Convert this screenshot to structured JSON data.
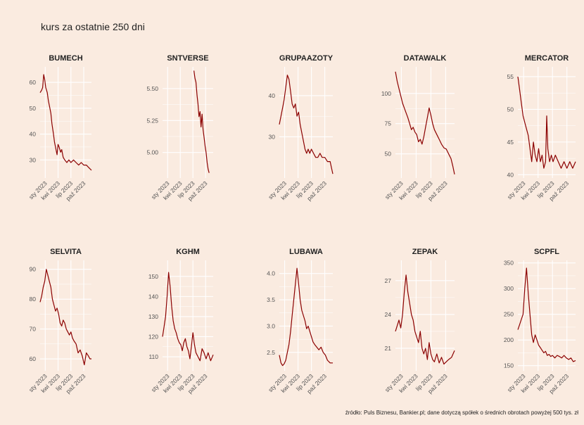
{
  "title": "kurs za ostatnie 250 dni",
  "source": "źródło: Puls Biznesu, Bankier.pl; dane dotyczą spółek o średnich obrotach powyżej 500 tys. zł",
  "colors": {
    "background": "#faebe0",
    "line": "#8b0000",
    "grid": "#ffffff",
    "text": "#222222",
    "tick_text": "#555555"
  },
  "chart_data": [
    {
      "type": "line",
      "title": "BUMECH",
      "xticks": [
        "sty 2023",
        "kwi 2023",
        "lip 2023",
        "paź 2023"
      ],
      "yticks": [
        "30",
        "40",
        "50",
        "60"
      ],
      "ylim": [
        23,
        66
      ],
      "points": [
        [
          0.0,
          56
        ],
        [
          0.03,
          57
        ],
        [
          0.05,
          58
        ],
        [
          0.07,
          63
        ],
        [
          0.09,
          61
        ],
        [
          0.11,
          58
        ],
        [
          0.14,
          56
        ],
        [
          0.16,
          53
        ],
        [
          0.19,
          50
        ],
        [
          0.21,
          48
        ],
        [
          0.23,
          44
        ],
        [
          0.26,
          40
        ],
        [
          0.28,
          37
        ],
        [
          0.31,
          34
        ],
        [
          0.33,
          32
        ],
        [
          0.35,
          36
        ],
        [
          0.37,
          35
        ],
        [
          0.4,
          33
        ],
        [
          0.42,
          34
        ],
        [
          0.45,
          31
        ],
        [
          0.48,
          30
        ],
        [
          0.52,
          29
        ],
        [
          0.56,
          30
        ],
        [
          0.6,
          29
        ],
        [
          0.65,
          30
        ],
        [
          0.7,
          29
        ],
        [
          0.75,
          28
        ],
        [
          0.8,
          29
        ],
        [
          0.85,
          28
        ],
        [
          0.9,
          28
        ],
        [
          0.95,
          27
        ],
        [
          1.0,
          26
        ]
      ]
    },
    {
      "type": "line",
      "title": "SNTVERSE",
      "xticks": [
        "sty 2023",
        "kwi 2023",
        "lip 2023",
        "paź 2023"
      ],
      "yticks": [
        "5.00",
        "5.25",
        "5.50"
      ],
      "ylim": [
        4.8,
        5.67
      ],
      "points": [
        [
          0.62,
          5.64
        ],
        [
          0.64,
          5.58
        ],
        [
          0.66,
          5.55
        ],
        [
          0.68,
          5.45
        ],
        [
          0.7,
          5.38
        ],
        [
          0.72,
          5.28
        ],
        [
          0.74,
          5.32
        ],
        [
          0.76,
          5.2
        ],
        [
          0.78,
          5.3
        ],
        [
          0.8,
          5.18
        ],
        [
          0.82,
          5.12
        ],
        [
          0.84,
          5.05
        ],
        [
          0.86,
          5.0
        ],
        [
          0.88,
          4.92
        ],
        [
          0.9,
          4.87
        ],
        [
          0.92,
          4.84
        ]
      ]
    },
    {
      "type": "line",
      "title": "GRUPAAZOTY",
      "xticks": [
        "sty 2023",
        "kwi 2023",
        "lip 2023",
        "paź 2023"
      ],
      "yticks": [
        "30",
        "40"
      ],
      "ylim": [
        20,
        47
      ],
      "points": [
        [
          0.0,
          33
        ],
        [
          0.03,
          35
        ],
        [
          0.06,
          37
        ],
        [
          0.09,
          39
        ],
        [
          0.12,
          42
        ],
        [
          0.15,
          45
        ],
        [
          0.18,
          44
        ],
        [
          0.21,
          41
        ],
        [
          0.24,
          38
        ],
        [
          0.27,
          37
        ],
        [
          0.3,
          38
        ],
        [
          0.33,
          35
        ],
        [
          0.36,
          36
        ],
        [
          0.39,
          33
        ],
        [
          0.42,
          31
        ],
        [
          0.45,
          29
        ],
        [
          0.48,
          27
        ],
        [
          0.51,
          26
        ],
        [
          0.54,
          27
        ],
        [
          0.57,
          26
        ],
        [
          0.6,
          27
        ],
        [
          0.64,
          26
        ],
        [
          0.68,
          25
        ],
        [
          0.72,
          25
        ],
        [
          0.76,
          26
        ],
        [
          0.8,
          25
        ],
        [
          0.85,
          25
        ],
        [
          0.9,
          24
        ],
        [
          0.95,
          24
        ],
        [
          1.0,
          21
        ]
      ]
    },
    {
      "type": "line",
      "title": "DATAWALK",
      "xticks": [
        "sty 2023",
        "kwi 2023",
        "lip 2023",
        "paź 2023"
      ],
      "yticks": [
        "50",
        "75",
        "100"
      ],
      "ylim": [
        30,
        122
      ],
      "points": [
        [
          0.0,
          118
        ],
        [
          0.03,
          110
        ],
        [
          0.06,
          104
        ],
        [
          0.09,
          98
        ],
        [
          0.12,
          92
        ],
        [
          0.15,
          88
        ],
        [
          0.18,
          84
        ],
        [
          0.21,
          80
        ],
        [
          0.24,
          75
        ],
        [
          0.27,
          70
        ],
        [
          0.3,
          72
        ],
        [
          0.33,
          68
        ],
        [
          0.36,
          66
        ],
        [
          0.39,
          60
        ],
        [
          0.42,
          62
        ],
        [
          0.45,
          58
        ],
        [
          0.48,
          64
        ],
        [
          0.51,
          72
        ],
        [
          0.54,
          80
        ],
        [
          0.57,
          88
        ],
        [
          0.6,
          82
        ],
        [
          0.63,
          75
        ],
        [
          0.66,
          70
        ],
        [
          0.7,
          66
        ],
        [
          0.74,
          62
        ],
        [
          0.78,
          58
        ],
        [
          0.82,
          55
        ],
        [
          0.86,
          54
        ],
        [
          0.9,
          50
        ],
        [
          0.94,
          46
        ],
        [
          0.97,
          40
        ],
        [
          1.0,
          33
        ]
      ]
    },
    {
      "type": "line",
      "title": "MERCATOR",
      "xticks": [
        "sty 2023",
        "kwi 2023",
        "lip 2023",
        "paź 2023"
      ],
      "yticks": [
        "40",
        "45",
        "50",
        "55"
      ],
      "ylim": [
        39.5,
        56.5
      ],
      "points": [
        [
          0.0,
          55
        ],
        [
          0.03,
          53
        ],
        [
          0.06,
          51
        ],
        [
          0.09,
          49
        ],
        [
          0.12,
          48
        ],
        [
          0.15,
          47
        ],
        [
          0.18,
          46
        ],
        [
          0.21,
          44
        ],
        [
          0.24,
          42
        ],
        [
          0.27,
          45
        ],
        [
          0.3,
          43
        ],
        [
          0.33,
          42
        ],
        [
          0.36,
          44
        ],
        [
          0.39,
          42
        ],
        [
          0.42,
          43
        ],
        [
          0.45,
          41
        ],
        [
          0.48,
          42
        ],
        [
          0.5,
          49
        ],
        [
          0.52,
          44
        ],
        [
          0.55,
          42
        ],
        [
          0.58,
          43
        ],
        [
          0.61,
          42
        ],
        [
          0.65,
          43
        ],
        [
          0.7,
          42
        ],
        [
          0.75,
          41
        ],
        [
          0.8,
          42
        ],
        [
          0.85,
          41
        ],
        [
          0.9,
          42
        ],
        [
          0.95,
          41
        ],
        [
          1.0,
          42
        ]
      ]
    },
    {
      "type": "line",
      "title": "SELVITA",
      "xticks": [
        "sty 2023",
        "kwi 2023",
        "lip 2023",
        "paź 2023"
      ],
      "yticks": [
        "60",
        "70",
        "80",
        "90"
      ],
      "ylim": [
        56,
        93
      ],
      "points": [
        [
          0.0,
          79
        ],
        [
          0.03,
          81
        ],
        [
          0.06,
          84
        ],
        [
          0.09,
          86
        ],
        [
          0.12,
          90
        ],
        [
          0.15,
          88
        ],
        [
          0.18,
          86
        ],
        [
          0.21,
          84
        ],
        [
          0.24,
          80
        ],
        [
          0.27,
          78
        ],
        [
          0.3,
          76
        ],
        [
          0.33,
          77
        ],
        [
          0.36,
          75
        ],
        [
          0.39,
          72
        ],
        [
          0.42,
          71
        ],
        [
          0.45,
          73
        ],
        [
          0.48,
          72
        ],
        [
          0.51,
          70
        ],
        [
          0.54,
          69
        ],
        [
          0.57,
          68
        ],
        [
          0.6,
          69
        ],
        [
          0.63,
          67
        ],
        [
          0.66,
          66
        ],
        [
          0.7,
          65
        ],
        [
          0.74,
          62
        ],
        [
          0.78,
          63
        ],
        [
          0.82,
          61
        ],
        [
          0.86,
          58
        ],
        [
          0.9,
          62
        ],
        [
          0.94,
          61
        ],
        [
          0.97,
          60
        ],
        [
          1.0,
          60
        ]
      ]
    },
    {
      "type": "line",
      "title": "KGHM",
      "xticks": [
        "sty 2023",
        "kwi 2023",
        "lip 2023",
        "paź 2023"
      ],
      "yticks": [
        "110",
        "120",
        "130",
        "140",
        "150"
      ],
      "ylim": [
        103,
        158
      ],
      "points": [
        [
          0.0,
          120
        ],
        [
          0.03,
          125
        ],
        [
          0.06,
          130
        ],
        [
          0.09,
          140
        ],
        [
          0.12,
          152
        ],
        [
          0.15,
          145
        ],
        [
          0.18,
          135
        ],
        [
          0.21,
          128
        ],
        [
          0.24,
          124
        ],
        [
          0.27,
          122
        ],
        [
          0.3,
          119
        ],
        [
          0.33,
          117
        ],
        [
          0.36,
          116
        ],
        [
          0.39,
          113
        ],
        [
          0.42,
          117
        ],
        [
          0.45,
          119
        ],
        [
          0.48,
          115
        ],
        [
          0.51,
          113
        ],
        [
          0.54,
          109
        ],
        [
          0.57,
          115
        ],
        [
          0.6,
          122
        ],
        [
          0.63,
          116
        ],
        [
          0.66,
          112
        ],
        [
          0.7,
          110
        ],
        [
          0.74,
          108
        ],
        [
          0.78,
          114
        ],
        [
          0.82,
          112
        ],
        [
          0.86,
          109
        ],
        [
          0.9,
          112
        ],
        [
          0.95,
          108
        ],
        [
          1.0,
          111
        ]
      ]
    },
    {
      "type": "line",
      "title": "LUBAWA",
      "xticks": [
        "sty 2023",
        "kwi 2023",
        "lip 2023",
        "paź 2023"
      ],
      "yticks": [
        "2.5",
        "3.0",
        "3.5",
        "4.0"
      ],
      "ylim": [
        2.15,
        4.25
      ],
      "points": [
        [
          0.0,
          2.45
        ],
        [
          0.03,
          2.3
        ],
        [
          0.06,
          2.25
        ],
        [
          0.09,
          2.28
        ],
        [
          0.12,
          2.35
        ],
        [
          0.15,
          2.5
        ],
        [
          0.18,
          2.65
        ],
        [
          0.21,
          2.9
        ],
        [
          0.24,
          3.2
        ],
        [
          0.27,
          3.5
        ],
        [
          0.3,
          3.8
        ],
        [
          0.33,
          4.1
        ],
        [
          0.36,
          3.8
        ],
        [
          0.39,
          3.5
        ],
        [
          0.42,
          3.3
        ],
        [
          0.45,
          3.2
        ],
        [
          0.48,
          3.1
        ],
        [
          0.51,
          2.95
        ],
        [
          0.54,
          3.0
        ],
        [
          0.57,
          2.9
        ],
        [
          0.6,
          2.8
        ],
        [
          0.63,
          2.7
        ],
        [
          0.66,
          2.65
        ],
        [
          0.7,
          2.6
        ],
        [
          0.74,
          2.55
        ],
        [
          0.78,
          2.6
        ],
        [
          0.82,
          2.5
        ],
        [
          0.86,
          2.45
        ],
        [
          0.9,
          2.35
        ],
        [
          0.95,
          2.3
        ],
        [
          1.0,
          2.3
        ]
      ]
    },
    {
      "type": "line",
      "title": "ZEPAK",
      "xticks": [
        "sty 2023",
        "kwi 2023",
        "lip 2023",
        "paź 2023"
      ],
      "yticks": [
        "21",
        "24",
        "27"
      ],
      "ylim": [
        19,
        28.8
      ],
      "points": [
        [
          0.0,
          22.5
        ],
        [
          0.03,
          23.0
        ],
        [
          0.06,
          23.5
        ],
        [
          0.09,
          22.8
        ],
        [
          0.12,
          24.0
        ],
        [
          0.15,
          26.0
        ],
        [
          0.18,
          27.5
        ],
        [
          0.21,
          26.0
        ],
        [
          0.24,
          25.0
        ],
        [
          0.27,
          24.0
        ],
        [
          0.3,
          23.5
        ],
        [
          0.33,
          22.5
        ],
        [
          0.36,
          22.0
        ],
        [
          0.39,
          21.5
        ],
        [
          0.42,
          22.5
        ],
        [
          0.45,
          21.0
        ],
        [
          0.48,
          20.5
        ],
        [
          0.51,
          21.0
        ],
        [
          0.54,
          20.0
        ],
        [
          0.57,
          21.5
        ],
        [
          0.6,
          20.5
        ],
        [
          0.63,
          20.0
        ],
        [
          0.66,
          19.8
        ],
        [
          0.7,
          20.5
        ],
        [
          0.74,
          19.7
        ],
        [
          0.78,
          20.2
        ],
        [
          0.82,
          19.6
        ],
        [
          0.86,
          19.8
        ],
        [
          0.9,
          20.0
        ],
        [
          0.95,
          20.2
        ],
        [
          1.0,
          20.8
        ]
      ]
    },
    {
      "type": "line",
      "title": "SCPFL",
      "xticks": [
        "sty 2023",
        "kwi 2023",
        "lip 2023",
        "paź 2023"
      ],
      "yticks": [
        "150",
        "200",
        "250",
        "300",
        "350"
      ],
      "ylim": [
        140,
        355
      ],
      "points": [
        [
          0.0,
          220
        ],
        [
          0.03,
          230
        ],
        [
          0.06,
          240
        ],
        [
          0.09,
          250
        ],
        [
          0.12,
          300
        ],
        [
          0.15,
          340
        ],
        [
          0.18,
          290
        ],
        [
          0.21,
          250
        ],
        [
          0.24,
          210
        ],
        [
          0.27,
          195
        ],
        [
          0.3,
          210
        ],
        [
          0.33,
          200
        ],
        [
          0.36,
          190
        ],
        [
          0.39,
          185
        ],
        [
          0.42,
          180
        ],
        [
          0.45,
          175
        ],
        [
          0.48,
          178
        ],
        [
          0.51,
          170
        ],
        [
          0.54,
          172
        ],
        [
          0.57,
          168
        ],
        [
          0.6,
          170
        ],
        [
          0.64,
          165
        ],
        [
          0.68,
          170
        ],
        [
          0.72,
          168
        ],
        [
          0.76,
          165
        ],
        [
          0.8,
          170
        ],
        [
          0.84,
          165
        ],
        [
          0.88,
          162
        ],
        [
          0.92,
          165
        ],
        [
          0.96,
          158
        ],
        [
          1.0,
          160
        ]
      ]
    }
  ]
}
